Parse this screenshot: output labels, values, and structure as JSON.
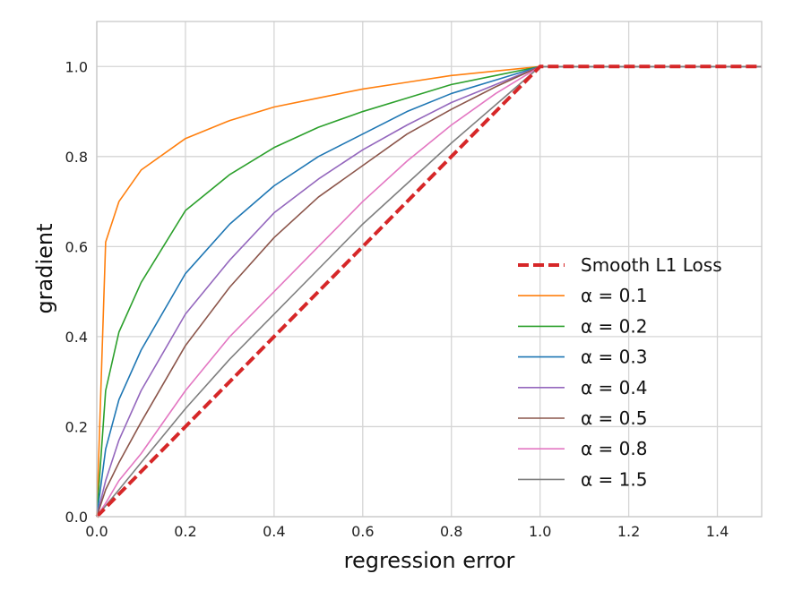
{
  "chart_data": {
    "type": "line",
    "xlabel": "regression error",
    "ylabel": "gradient",
    "xlim": [
      0.0,
      1.5
    ],
    "ylim": [
      0.0,
      1.1
    ],
    "x_ticks": [
      "0.0",
      "0.2",
      "0.4",
      "0.6",
      "0.8",
      "1.0",
      "1.2",
      "1.4"
    ],
    "y_ticks": [
      "0.0",
      "0.2",
      "0.4",
      "0.6",
      "0.8",
      "1.0"
    ],
    "grid": true,
    "legend_position": "center-right",
    "series": [
      {
        "name": "Smooth L1 Loss",
        "color": "#d62728",
        "style": "dashed",
        "x": [
          0.0,
          1.0,
          1.5
        ],
        "y": [
          0.0,
          1.0,
          1.0
        ]
      },
      {
        "name": "α = 0.1",
        "alpha": 0.1,
        "color": "#ff7f0e",
        "style": "solid",
        "x": [
          0.0,
          0.02,
          0.05,
          0.1,
          0.2,
          0.3,
          0.4,
          0.5,
          0.6,
          0.7,
          0.8,
          0.9,
          1.0,
          1.5
        ],
        "y": [
          0.0,
          0.61,
          0.7,
          0.77,
          0.84,
          0.88,
          0.91,
          0.93,
          0.95,
          0.965,
          0.98,
          0.99,
          1.0,
          1.0
        ]
      },
      {
        "name": "α = 0.2",
        "alpha": 0.2,
        "color": "#2ca02c",
        "style": "solid",
        "x": [
          0.0,
          0.02,
          0.05,
          0.1,
          0.2,
          0.3,
          0.4,
          0.5,
          0.6,
          0.7,
          0.8,
          0.9,
          1.0,
          1.5
        ],
        "y": [
          0.0,
          0.28,
          0.41,
          0.52,
          0.68,
          0.76,
          0.82,
          0.865,
          0.9,
          0.93,
          0.96,
          0.98,
          1.0,
          1.0
        ]
      },
      {
        "name": "α = 0.3",
        "alpha": 0.3,
        "color": "#1f77b4",
        "style": "solid",
        "x": [
          0.0,
          0.02,
          0.05,
          0.1,
          0.2,
          0.3,
          0.4,
          0.5,
          0.6,
          0.7,
          0.8,
          0.9,
          1.0,
          1.5
        ],
        "y": [
          0.0,
          0.15,
          0.26,
          0.37,
          0.54,
          0.65,
          0.735,
          0.8,
          0.85,
          0.9,
          0.94,
          0.97,
          1.0,
          1.0
        ]
      },
      {
        "name": "α = 0.4",
        "alpha": 0.4,
        "color": "#9467bd",
        "style": "solid",
        "x": [
          0.0,
          0.02,
          0.05,
          0.1,
          0.2,
          0.3,
          0.4,
          0.5,
          0.6,
          0.7,
          0.8,
          0.9,
          1.0,
          1.5
        ],
        "y": [
          0.0,
          0.08,
          0.17,
          0.28,
          0.45,
          0.57,
          0.675,
          0.75,
          0.815,
          0.87,
          0.92,
          0.96,
          1.0,
          1.0
        ]
      },
      {
        "name": "α = 0.5",
        "alpha": 0.5,
        "color": "#8c564b",
        "style": "solid",
        "x": [
          0.0,
          0.02,
          0.05,
          0.1,
          0.2,
          0.3,
          0.4,
          0.5,
          0.6,
          0.7,
          0.8,
          0.9,
          1.0,
          1.5
        ],
        "y": [
          0.0,
          0.06,
          0.12,
          0.21,
          0.38,
          0.51,
          0.62,
          0.71,
          0.78,
          0.85,
          0.905,
          0.955,
          1.0,
          1.0
        ]
      },
      {
        "name": "α = 0.8",
        "alpha": 0.8,
        "color": "#e377c2",
        "style": "solid",
        "x": [
          0.0,
          0.02,
          0.05,
          0.1,
          0.2,
          0.3,
          0.4,
          0.5,
          0.6,
          0.7,
          0.8,
          0.9,
          1.0,
          1.5
        ],
        "y": [
          0.0,
          0.03,
          0.08,
          0.14,
          0.28,
          0.4,
          0.5,
          0.6,
          0.7,
          0.79,
          0.87,
          0.94,
          1.0,
          1.0
        ]
      },
      {
        "name": "α = 1.5",
        "alpha": 1.5,
        "color": "#7f7f7f",
        "style": "solid",
        "x": [
          0.0,
          0.1,
          0.2,
          0.3,
          0.4,
          0.5,
          0.6,
          0.7,
          0.8,
          0.9,
          1.0,
          1.5
        ],
        "y": [
          0.0,
          0.12,
          0.24,
          0.35,
          0.45,
          0.55,
          0.65,
          0.74,
          0.83,
          0.915,
          1.0,
          1.0
        ]
      }
    ]
  }
}
